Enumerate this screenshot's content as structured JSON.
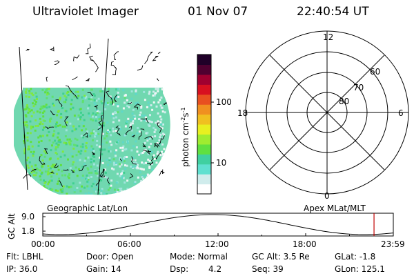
{
  "header": {
    "instrument": "Ultraviolet Imager",
    "date": "01 Nov 07",
    "time": "22:40:54 UT"
  },
  "colorbar": {
    "unit_label": "photon cm",
    "unit_sup1": "-2",
    "unit_s": "s",
    "unit_sup2": "-1",
    "ticks": [
      "100",
      "10"
    ],
    "scale": "log",
    "colors_bottom_to_top": [
      "#ffffff",
      "#d0ecec",
      "#60e0d0",
      "#40d0a0",
      "#60e040",
      "#a0ec30",
      "#e8f020",
      "#f0c020",
      "#f09020",
      "#e85020",
      "#d81020",
      "#a00030",
      "#500030",
      "#200028"
    ]
  },
  "polar_plot": {
    "mlt_labels": {
      "top": "12",
      "bottom": "0",
      "left": "18",
      "right": "6"
    },
    "lat_labels": [
      "60",
      "70",
      "80"
    ]
  },
  "map_labels": {
    "left": "Geographic Lat/Lon",
    "right": "Apex MLat/MLT"
  },
  "altitude_plot": {
    "ylabel": "GC Alt",
    "yticks": [
      "9.0",
      "1.8"
    ],
    "xticks": [
      "00:00",
      "06:00",
      "12:00",
      "18:00",
      "23:59"
    ],
    "marker_time_hours": 22.68,
    "marker_color": "#c00000"
  },
  "info": {
    "flt": "Flt: LBHL",
    "door": "Door: Open",
    "mode": "Mode: Normal",
    "gc_alt": "GC Alt: 3.5 Re",
    "glat": "GLat:  -1.8",
    "ip": "IP: 36.0",
    "gain": "Gain: 14",
    "dsp_label": "Dsp:",
    "dsp_value": "4.2",
    "seq": "Seq: 39",
    "glon": "GLon: 125.1"
  }
}
